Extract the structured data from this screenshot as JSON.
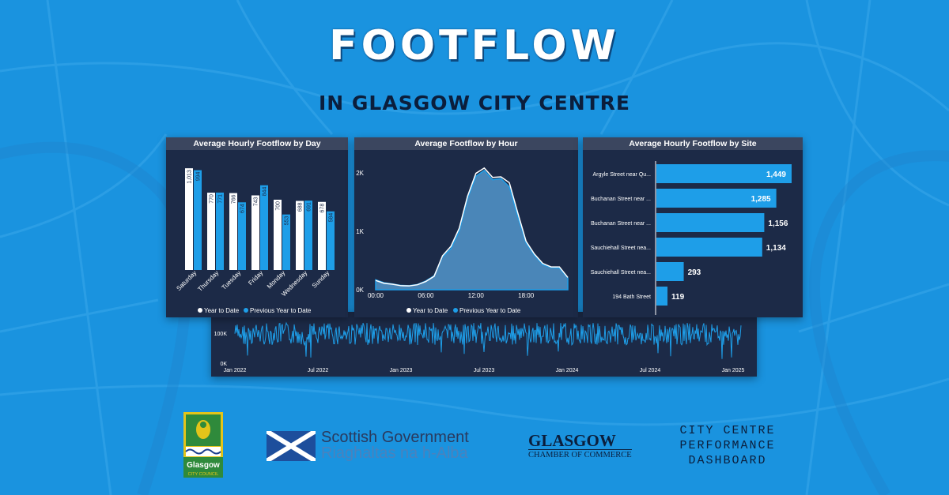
{
  "header": {
    "title": "FOOTFLOW",
    "subtitle": "IN GLASGOW CITY CENTRE"
  },
  "colors": {
    "background": "#1a93df",
    "panel": "#1c2a47",
    "panel_header": "#3b465f",
    "year_to_date": "#ffffff",
    "previous_year": "#1e9ee8"
  },
  "chart_data": [
    {
      "type": "bar",
      "title": "Average Hourly Footflow by Day",
      "categories": [
        "Saturday",
        "Thursday",
        "Tuesday",
        "Friday",
        "Monday",
        "Wednesday",
        "Sunday"
      ],
      "series": [
        {
          "name": "Year to Date",
          "values": [
            1013,
            770,
            766,
            743,
            700,
            688,
            678
          ],
          "labels": [
            "1,013",
            "770",
            "766",
            "743",
            "700",
            "688",
            "678"
          ]
        },
        {
          "name": "Previous Year to Date",
          "values": [
            994,
            771,
            674,
            844,
            553,
            691,
            584
          ],
          "labels": [
            "994",
            "771",
            "674",
            "844",
            "553",
            "691",
            "584"
          ]
        }
      ],
      "legend": "bottom",
      "ylim": [
        0,
        1100
      ]
    },
    {
      "type": "area",
      "title": "Average Footflow by Hour",
      "x_ticks": [
        "00:00",
        "06:00",
        "12:00",
        "18:00"
      ],
      "y_ticks": [
        "0K",
        "1K",
        "2K"
      ],
      "hours": [
        0,
        1,
        2,
        3,
        4,
        5,
        6,
        7,
        8,
        9,
        10,
        11,
        12,
        13,
        14,
        15,
        16,
        17,
        18,
        19,
        20,
        21,
        22,
        23
      ],
      "series": [
        {
          "name": "Year to Date",
          "values": [
            160,
            110,
            95,
            70,
            65,
            85,
            140,
            230,
            580,
            740,
            1050,
            1600,
            1990,
            2080,
            1920,
            1930,
            1830,
            1320,
            830,
            610,
            450,
            390,
            390,
            210
          ]
        },
        {
          "name": "Previous Year to Date",
          "values": [
            170,
            120,
            100,
            75,
            70,
            90,
            150,
            240,
            560,
            700,
            1000,
            1560,
            1940,
            2040,
            1880,
            1900,
            1760,
            1260,
            800,
            590,
            430,
            380,
            370,
            200
          ]
        }
      ],
      "legend": "bottom",
      "ylim": [
        0,
        2200
      ]
    },
    {
      "type": "bar",
      "orientation": "horizontal",
      "title": "Average Hourly Footflow by Site",
      "categories": [
        "Argyle Street near Qu...",
        "Buchanan Street near ...",
        "Buchanan Street near ...",
        "Sauchiehall Street nea...",
        "Sauchiehall Street nea...",
        "194 Bath Street"
      ],
      "values": [
        1449,
        1285,
        1156,
        1134,
        293,
        119
      ],
      "labels": [
        "1,449",
        "1,285",
        "1,156",
        "1,134",
        "293",
        "119"
      ],
      "xlim": [
        0,
        1500
      ]
    },
    {
      "type": "line",
      "title": "",
      "y_ticks": [
        "0K",
        "100K"
      ],
      "x_ticks": [
        "Jan 2022",
        "Jul 2022",
        "Jan 2023",
        "Jul 2023",
        "Jan 2024",
        "Jul 2024",
        "Jan 2025"
      ],
      "ylim": [
        0,
        150000
      ],
      "note_values": "daily footflow series, partially hidden behind panels"
    }
  ],
  "legend": {
    "year_to_date": "Year to Date",
    "previous_year": "Previous Year to Date"
  },
  "logos": {
    "council_name": "Glasgow",
    "council_sub": "CITY COUNCIL",
    "gov_name": "Scottish Government",
    "gov_gaelic": "Riaghaltas na h-Alba",
    "chamber_name": "GLASGOW",
    "chamber_sub": "CHAMBER OF COMMERCE",
    "dashboard_line1": "CITY CENTRE",
    "dashboard_line2": "PERFORMANCE",
    "dashboard_line3": "DASHBOARD"
  }
}
